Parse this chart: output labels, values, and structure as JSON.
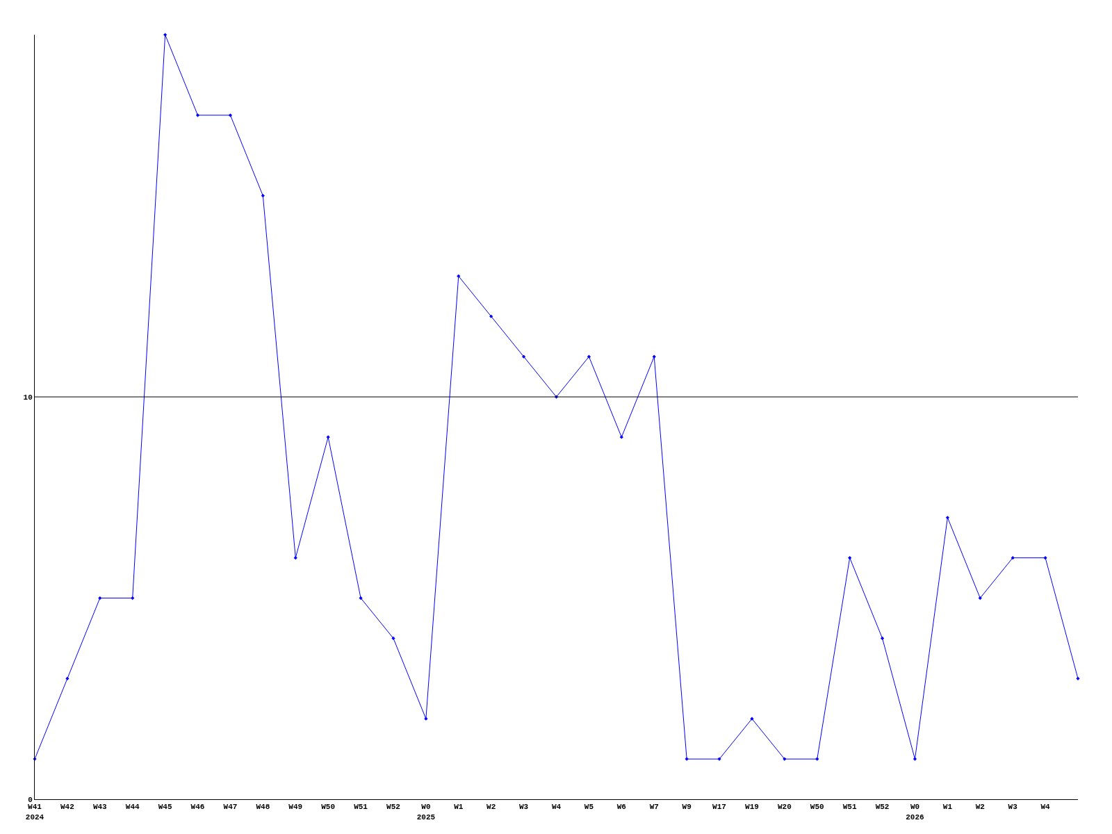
{
  "chart_data": {
    "type": "line",
    "categories": [
      "W41\n2024",
      "W42",
      "W43",
      "W44",
      "W45",
      "W46",
      "W47",
      "W48",
      "W49",
      "W50",
      "W51",
      "W52",
      "W0\n2025",
      "W1",
      "W2",
      "W3",
      "W4",
      "W5",
      "W6",
      "W7",
      "W9",
      "W17",
      "W19",
      "W20",
      "W50",
      "W51",
      "W52",
      "W0\n2026",
      "W1",
      "W2",
      "W3",
      "W4",
      null
    ],
    "series": [
      {
        "color": "#0000ff",
        "values": [
          1,
          3,
          5,
          5,
          19,
          17,
          17,
          15,
          6,
          9,
          5,
          4,
          2,
          13,
          12,
          11,
          10,
          11,
          9,
          11,
          1,
          1,
          2,
          1,
          1,
          6,
          4,
          1,
          7,
          5,
          6,
          6,
          3
        ]
      }
    ],
    "ylim": [
      0,
      19
    ],
    "yticks": [
      0,
      10
    ],
    "ref_lines": [
      {
        "axis": "y",
        "value": 10,
        "color": "#000000"
      }
    ],
    "marker": "diamond",
    "line_style": "solid",
    "legend": false
  }
}
